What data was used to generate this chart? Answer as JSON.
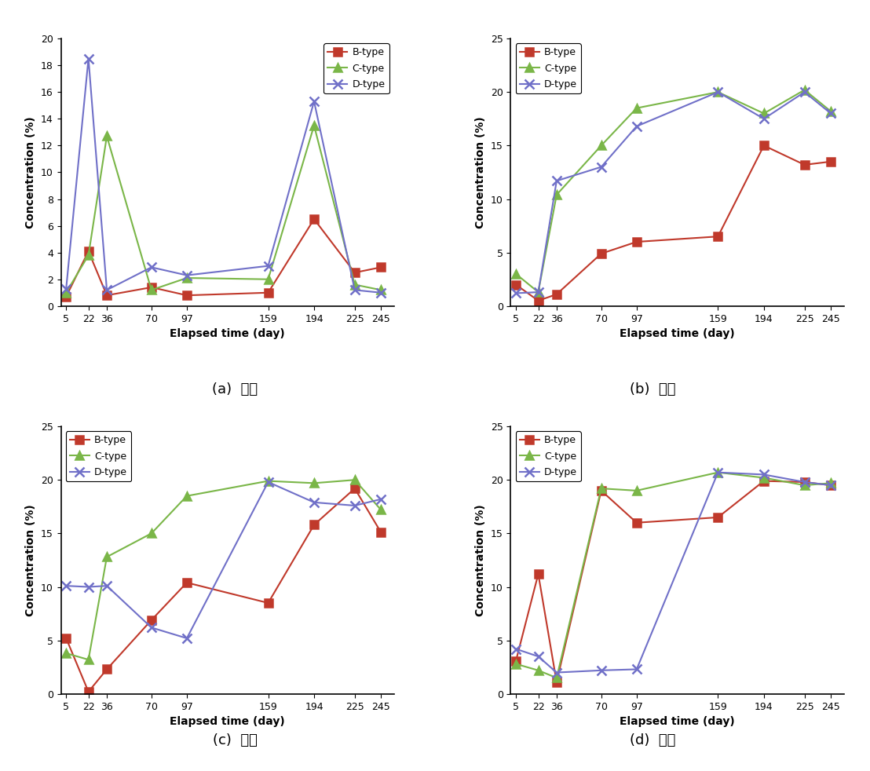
{
  "x": [
    5,
    22,
    36,
    70,
    97,
    159,
    194,
    225,
    245
  ],
  "plots": {
    "a": {
      "ylim": [
        0,
        20
      ],
      "yticks": [
        0,
        2,
        4,
        6,
        8,
        10,
        12,
        14,
        16,
        18,
        20
      ],
      "legend_loc": "upper right",
      "B": [
        0.7,
        4.1,
        0.8,
        1.4,
        0.8,
        1.0,
        6.5,
        2.5,
        2.9
      ],
      "C": [
        1.0,
        3.8,
        12.7,
        1.2,
        2.1,
        2.0,
        13.5,
        1.6,
        1.2
      ],
      "D": [
        1.3,
        18.5,
        1.2,
        2.9,
        2.3,
        3.0,
        15.3,
        1.2,
        1.0
      ]
    },
    "b": {
      "ylim": [
        0,
        25
      ],
      "yticks": [
        0,
        5,
        10,
        15,
        20,
        25
      ],
      "legend_loc": "upper left",
      "B": [
        2.0,
        0.5,
        1.1,
        4.9,
        6.0,
        6.5,
        15.0,
        13.2,
        13.5
      ],
      "C": [
        3.0,
        1.3,
        10.4,
        15.0,
        18.5,
        20.0,
        18.0,
        20.2,
        18.2
      ],
      "D": [
        1.2,
        1.3,
        11.7,
        13.0,
        16.8,
        20.0,
        17.5,
        20.0,
        18.0
      ]
    },
    "c": {
      "ylim": [
        0,
        25
      ],
      "yticks": [
        0,
        5,
        10,
        15,
        20,
        25
      ],
      "legend_loc": "upper left",
      "B": [
        5.2,
        0.2,
        2.3,
        6.9,
        10.4,
        8.5,
        15.8,
        19.2,
        15.1
      ],
      "C": [
        3.8,
        3.2,
        12.8,
        15.0,
        18.5,
        19.9,
        19.7,
        20.0,
        17.2
      ],
      "D": [
        10.1,
        10.0,
        10.1,
        6.2,
        5.2,
        19.8,
        17.9,
        17.6,
        18.2
      ]
    },
    "d": {
      "ylim": [
        0,
        25
      ],
      "yticks": [
        0,
        5,
        10,
        15,
        20,
        25
      ],
      "legend_loc": "upper left",
      "B": [
        3.1,
        11.2,
        1.1,
        19.0,
        16.0,
        16.5,
        19.9,
        19.8,
        19.5
      ],
      "C": [
        2.8,
        2.2,
        1.5,
        19.2,
        19.0,
        20.7,
        20.2,
        19.5,
        19.7
      ],
      "D": [
        4.2,
        3.5,
        2.0,
        2.2,
        2.3,
        20.7,
        20.5,
        19.8,
        19.5
      ]
    }
  },
  "subplot_labels": [
    "(a)  표층",
    "(b)  상단",
    "(c)  중단",
    "(d)  하단"
  ],
  "colors": {
    "B": "#c0392b",
    "C": "#7ab648",
    "D": "#7070c8"
  },
  "markers": {
    "B": "s",
    "C": "^",
    "D": "x"
  },
  "xlabel": "Elapsed time (day)",
  "ylabel": "Concentration (%)"
}
